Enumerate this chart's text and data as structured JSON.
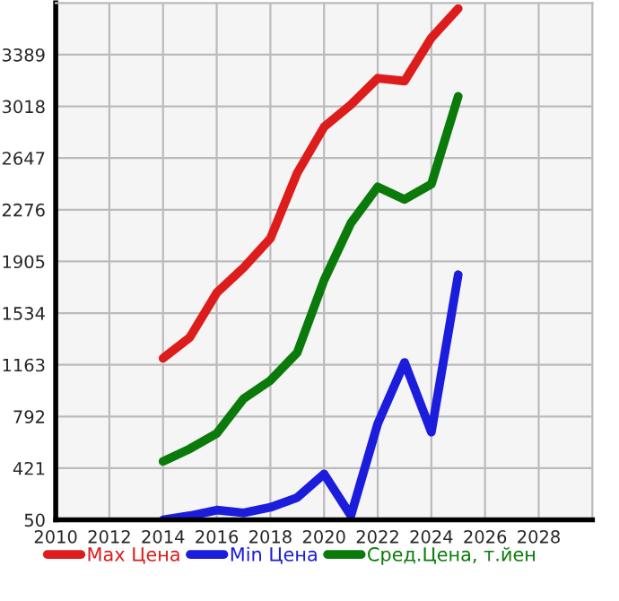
{
  "chart_data": {
    "type": "line",
    "x": [
      2014,
      2015,
      2016,
      2017,
      2018,
      2019,
      2020,
      2021,
      2022,
      2023,
      2024,
      2025
    ],
    "series": [
      {
        "name": "Max Цена",
        "color": "#dd1c1c",
        "values": [
          1210,
          1360,
          1680,
          1860,
          2070,
          2540,
          2870,
          3030,
          3220,
          3200,
          3510,
          3720
        ]
      },
      {
        "name": "Min Цена",
        "color": "#1c1cdd",
        "values": [
          50,
          80,
          120,
          100,
          140,
          210,
          380,
          80,
          740,
          1180,
          680,
          1810
        ]
      },
      {
        "name": "Сред.Цена, т.йен",
        "color": "#0a7a0a",
        "values": [
          470,
          560,
          670,
          920,
          1050,
          1250,
          1770,
          2180,
          2440,
          2350,
          2460,
          3090
        ]
      }
    ],
    "xlim": [
      2010,
      2030
    ],
    "xticks": [
      2010,
      2012,
      2014,
      2016,
      2018,
      2020,
      2022,
      2024,
      2026,
      2028
    ],
    "ylim": [
      50,
      3760
    ],
    "yticks": [
      50,
      421,
      792,
      1163,
      1534,
      1905,
      2276,
      2647,
      3018,
      3389
    ],
    "grid": true,
    "legend": "bottom",
    "marker": "none",
    "line_style": "solid"
  }
}
